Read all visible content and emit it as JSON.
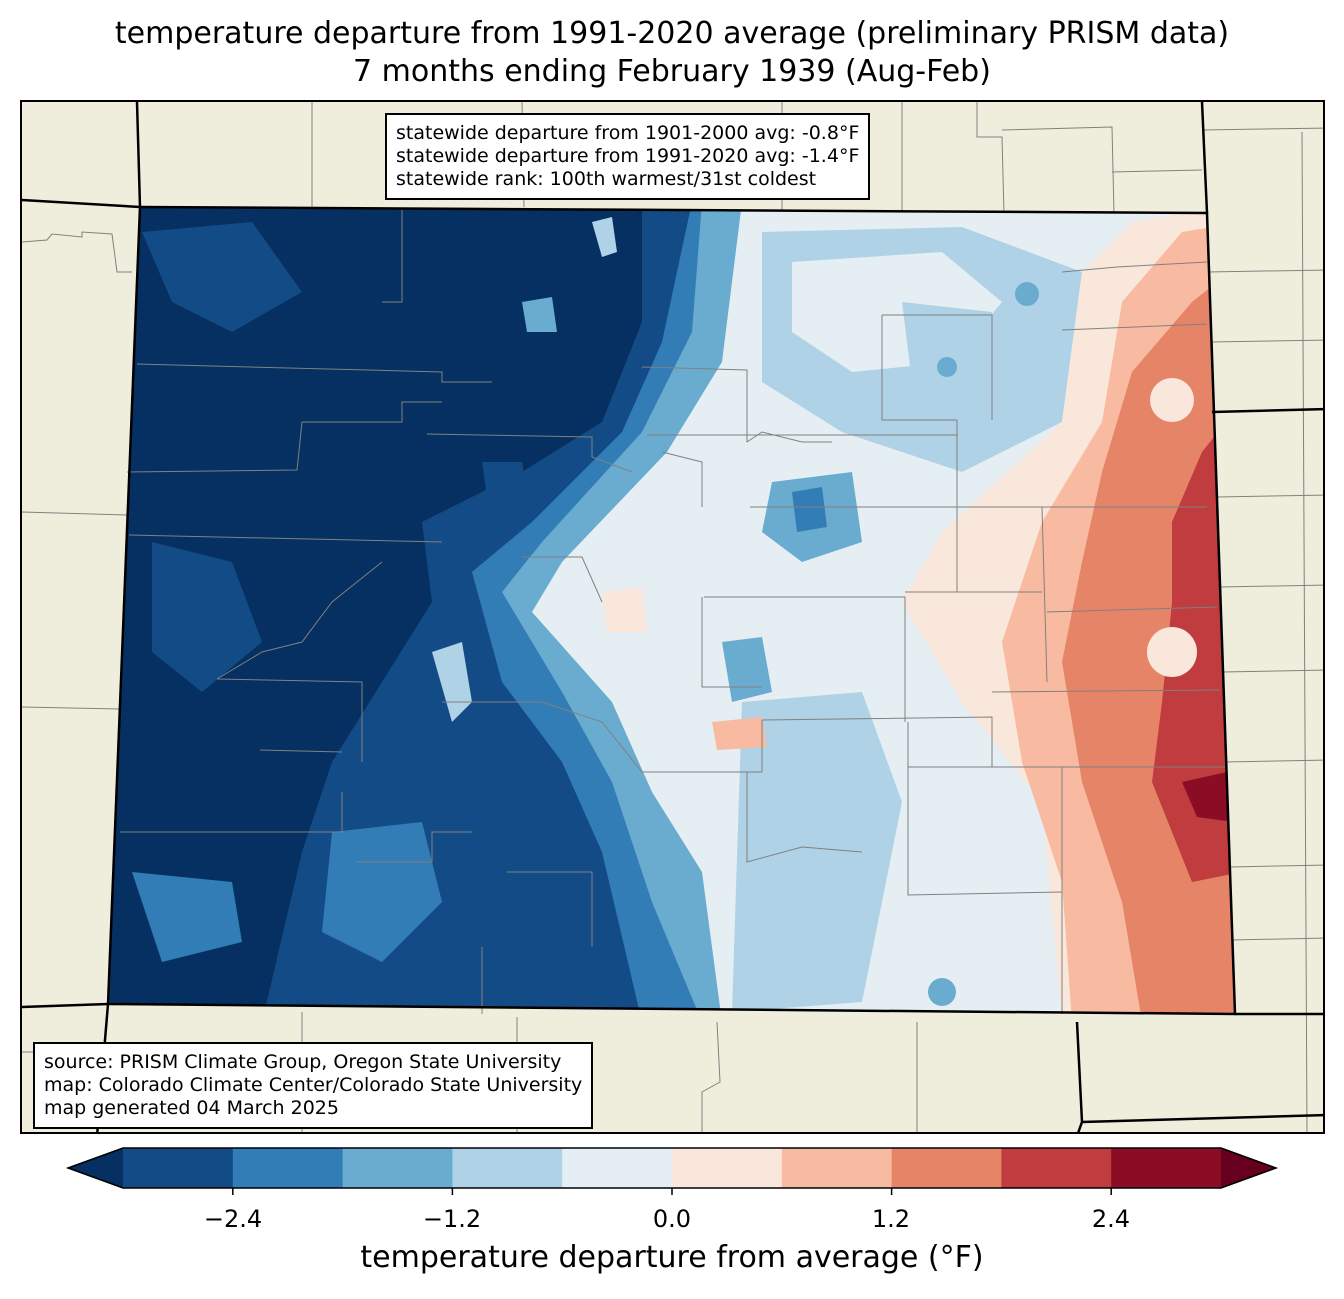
{
  "title": {
    "line1": "temperature departure from 1991-2020 average (preliminary PRISM data)",
    "line2": "7 months ending February 1939 (Aug-Feb)"
  },
  "stats": {
    "line1": "statewide departure from 1901-2000 avg: -0.8°F",
    "line2": "statewide departure from 1991-2020 avg: -1.4°F",
    "line3": "statewide rank: 100th warmest/31st coldest"
  },
  "source": {
    "line1": "source: PRISM Climate Group, Oregon State University",
    "line2": "map: Colorado Climate Center/Colorado State University",
    "line3": "map generated 04 March 2025"
  },
  "colorbar": {
    "label": "temperature departure from average (°F)",
    "ticks": [
      "−2.4",
      "−1.2",
      "0.0",
      "1.2",
      "2.4"
    ],
    "levels": [
      -3.0,
      -2.4,
      -1.8,
      -1.2,
      -0.6,
      0.0,
      0.6,
      1.2,
      1.8,
      2.4,
      3.0
    ],
    "colors": [
      "#053061",
      "#134b87",
      "#327db6",
      "#6aacd0",
      "#afd2e7",
      "#e5eef3",
      "#fae7dc",
      "#f8bba1",
      "#e68468",
      "#c03c3e",
      "#8b0c25",
      "#67001f"
    ]
  },
  "map_colors": {
    "land": "#efeddc",
    "county_lines": "#808080",
    "state_lines": "#000000"
  }
}
